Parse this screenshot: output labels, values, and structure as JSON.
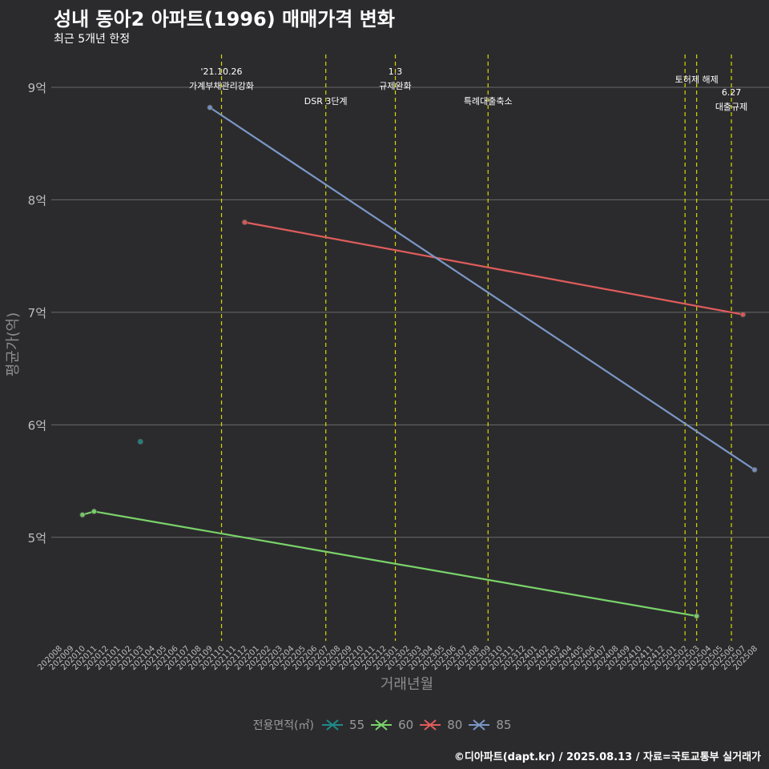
{
  "header": {
    "title": "성내 동아2 아파트(1996) 매매가격 변화",
    "subtitle": "최근 5개년 한정"
  },
  "caption": "©디아파트(dapt.kr) / 2025.08.13 / 자료=국토교통부 실거래가",
  "colors": {
    "background": "#2b2b2d",
    "grid": "#6a6a6a",
    "event_line": "#d8d800",
    "axis_text": "#bdbdbd",
    "s55": "#1f8a8a",
    "s60": "#7ad36a",
    "s80": "#e05c5c",
    "s85": "#7b97c7"
  },
  "legend": {
    "title": "전용면적(㎡)",
    "items": [
      {
        "label": "55",
        "color": "#1f8a8a"
      },
      {
        "label": "60",
        "color": "#7ad36a"
      },
      {
        "label": "80",
        "color": "#e05c5c"
      },
      {
        "label": "85",
        "color": "#7b97c7"
      }
    ]
  },
  "chart_data": {
    "type": "line",
    "title": "성내 동아2 아파트(1996) 매매가격 변화",
    "subtitle": "최근 5개년 한정",
    "xlabel": "거래년월",
    "ylabel": "평균가(억)",
    "y_ticks": [
      5,
      6,
      7,
      8,
      9
    ],
    "y_tick_labels": [
      "5억",
      "6억",
      "7억",
      "8억",
      "9억"
    ],
    "ylim": [
      4.08,
      9.32
    ],
    "categories": [
      "202008",
      "202009",
      "202010",
      "202011",
      "202012",
      "202101",
      "202102",
      "202103",
      "202104",
      "202105",
      "202106",
      "202107",
      "202108",
      "202109",
      "202110",
      "202111",
      "202112",
      "202201",
      "202202",
      "202203",
      "202204",
      "202205",
      "202206",
      "202207",
      "202208",
      "202209",
      "202210",
      "202211",
      "202212",
      "202301",
      "202302",
      "202303",
      "202304",
      "202305",
      "202306",
      "202307",
      "202308",
      "202309",
      "202310",
      "202311",
      "202312",
      "202401",
      "202402",
      "202403",
      "202404",
      "202405",
      "202406",
      "202407",
      "202408",
      "202409",
      "202410",
      "202411",
      "202412",
      "202501",
      "202502",
      "202503",
      "202504",
      "202505",
      "202506",
      "202507",
      "202508"
    ],
    "series": [
      {
        "name": "55",
        "color": "#1f8a8a",
        "points": [
          {
            "x": "202103",
            "y": 5.85
          }
        ]
      },
      {
        "name": "60",
        "color": "#7ad36a",
        "points": [
          {
            "x": "202010",
            "y": 5.2
          },
          {
            "x": "202011",
            "y": 5.23
          },
          {
            "x": "202503",
            "y": 4.3
          }
        ]
      },
      {
        "name": "80",
        "color": "#e05c5c",
        "points": [
          {
            "x": "202112",
            "y": 7.8
          },
          {
            "x": "202507",
            "y": 6.98
          }
        ]
      },
      {
        "name": "85",
        "color": "#7b97c7",
        "points": [
          {
            "x": "202109",
            "y": 8.82
          },
          {
            "x": "202508",
            "y": 5.6
          }
        ]
      }
    ],
    "events": [
      {
        "x": "202110",
        "lines": [
          "'21.10.26",
          "가계부채관리강화"
        ],
        "row": 1
      },
      {
        "x": "202207",
        "lines": [
          "DSR 3단계"
        ],
        "row": 2
      },
      {
        "x": "202301",
        "lines": [
          "1.3",
          "규제완화"
        ],
        "row": 1
      },
      {
        "x": "202309",
        "lines": [
          "특례대출축소"
        ],
        "row": 2
      },
      {
        "x": "202502",
        "lines": [],
        "row": 0
      },
      {
        "x": "202503",
        "lines": [
          "토허제 해제"
        ],
        "row": 1
      },
      {
        "x": "202506",
        "lines": [
          "6.27",
          "대출규제"
        ],
        "row": 3
      }
    ]
  }
}
